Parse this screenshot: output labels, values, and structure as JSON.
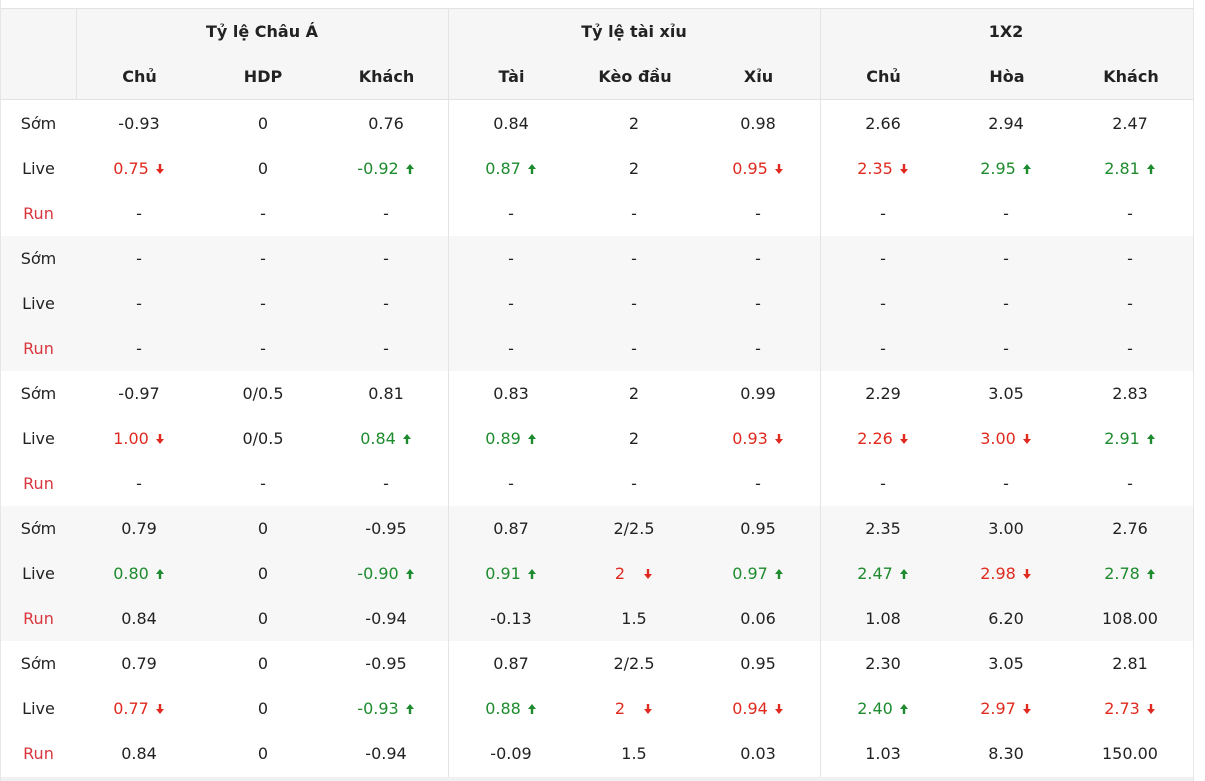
{
  "groups": [
    {
      "label": "Tỷ lệ Châu Á",
      "cols": [
        "Chủ",
        "HDP",
        "Khách"
      ]
    },
    {
      "label": "Tỷ lệ tài xỉu",
      "cols": [
        "Tài",
        "Kèo đầu",
        "Xỉu"
      ]
    },
    {
      "label": "1X2",
      "cols": [
        "Chủ",
        "Hòa",
        "Khách"
      ]
    }
  ],
  "blocks": [
    {
      "rows": [
        {
          "label": "Sớm",
          "type": "early",
          "cells": [
            {
              "v": "-0.93"
            },
            {
              "v": "0"
            },
            {
              "v": "0.76"
            },
            {
              "v": "0.84"
            },
            {
              "v": "2"
            },
            {
              "v": "0.98"
            },
            {
              "v": "2.66"
            },
            {
              "v": "2.94"
            },
            {
              "v": "2.47"
            }
          ]
        },
        {
          "label": "Live",
          "type": "live",
          "cells": [
            {
              "v": "0.75",
              "d": "down"
            },
            {
              "v": "0"
            },
            {
              "v": "-0.92",
              "d": "up"
            },
            {
              "v": "0.87",
              "d": "up"
            },
            {
              "v": "2"
            },
            {
              "v": "0.95",
              "d": "down"
            },
            {
              "v": "2.35",
              "d": "down"
            },
            {
              "v": "2.95",
              "d": "up"
            },
            {
              "v": "2.81",
              "d": "up"
            }
          ]
        },
        {
          "label": "Run",
          "type": "run",
          "cells": [
            {
              "v": "-"
            },
            {
              "v": "-"
            },
            {
              "v": "-"
            },
            {
              "v": "-"
            },
            {
              "v": "-"
            },
            {
              "v": "-"
            },
            {
              "v": "-"
            },
            {
              "v": "-"
            },
            {
              "v": "-"
            }
          ]
        }
      ]
    },
    {
      "rows": [
        {
          "label": "Sớm",
          "type": "early",
          "cells": [
            {
              "v": "-"
            },
            {
              "v": "-"
            },
            {
              "v": "-"
            },
            {
              "v": "-"
            },
            {
              "v": "-"
            },
            {
              "v": "-"
            },
            {
              "v": "-"
            },
            {
              "v": "-"
            },
            {
              "v": "-"
            }
          ]
        },
        {
          "label": "Live",
          "type": "live",
          "cells": [
            {
              "v": "-"
            },
            {
              "v": "-"
            },
            {
              "v": "-"
            },
            {
              "v": "-"
            },
            {
              "v": "-"
            },
            {
              "v": "-"
            },
            {
              "v": "-"
            },
            {
              "v": "-"
            },
            {
              "v": "-"
            }
          ]
        },
        {
          "label": "Run",
          "type": "run",
          "cells": [
            {
              "v": "-"
            },
            {
              "v": "-"
            },
            {
              "v": "-"
            },
            {
              "v": "-"
            },
            {
              "v": "-"
            },
            {
              "v": "-"
            },
            {
              "v": "-"
            },
            {
              "v": "-"
            },
            {
              "v": "-"
            }
          ]
        }
      ]
    },
    {
      "rows": [
        {
          "label": "Sớm",
          "type": "early",
          "cells": [
            {
              "v": "-0.97"
            },
            {
              "v": "0/0.5"
            },
            {
              "v": "0.81"
            },
            {
              "v": "0.83"
            },
            {
              "v": "2"
            },
            {
              "v": "0.99"
            },
            {
              "v": "2.29"
            },
            {
              "v": "3.05"
            },
            {
              "v": "2.83"
            }
          ]
        },
        {
          "label": "Live",
          "type": "live",
          "cells": [
            {
              "v": "1.00",
              "d": "down"
            },
            {
              "v": "0/0.5"
            },
            {
              "v": "0.84",
              "d": "up"
            },
            {
              "v": "0.89",
              "d": "up"
            },
            {
              "v": "2"
            },
            {
              "v": "0.93",
              "d": "down"
            },
            {
              "v": "2.26",
              "d": "down"
            },
            {
              "v": "3.00",
              "d": "down"
            },
            {
              "v": "2.91",
              "d": "up"
            }
          ]
        },
        {
          "label": "Run",
          "type": "run",
          "cells": [
            {
              "v": "-"
            },
            {
              "v": "-"
            },
            {
              "v": "-"
            },
            {
              "v": "-"
            },
            {
              "v": "-"
            },
            {
              "v": "-"
            },
            {
              "v": "-"
            },
            {
              "v": "-"
            },
            {
              "v": "-"
            }
          ]
        }
      ]
    },
    {
      "rows": [
        {
          "label": "Sớm",
          "type": "early",
          "cells": [
            {
              "v": "0.79"
            },
            {
              "v": "0"
            },
            {
              "v": "-0.95"
            },
            {
              "v": "0.87"
            },
            {
              "v": "2/2.5"
            },
            {
              "v": "0.95"
            },
            {
              "v": "2.35"
            },
            {
              "v": "3.00"
            },
            {
              "v": "2.76"
            }
          ]
        },
        {
          "label": "Live",
          "type": "live",
          "cells": [
            {
              "v": "0.80",
              "d": "up"
            },
            {
              "v": "0"
            },
            {
              "v": "-0.90",
              "d": "up"
            },
            {
              "v": "0.91",
              "d": "up"
            },
            {
              "v": "2",
              "d": "down"
            },
            {
              "v": "0.97",
              "d": "up"
            },
            {
              "v": "2.47",
              "d": "up"
            },
            {
              "v": "2.98",
              "d": "down"
            },
            {
              "v": "2.78",
              "d": "up"
            }
          ]
        },
        {
          "label": "Run",
          "type": "run",
          "cells": [
            {
              "v": "0.84"
            },
            {
              "v": "0"
            },
            {
              "v": "-0.94"
            },
            {
              "v": "-0.13"
            },
            {
              "v": "1.5"
            },
            {
              "v": "0.06"
            },
            {
              "v": "1.08"
            },
            {
              "v": "6.20"
            },
            {
              "v": "108.00"
            }
          ]
        }
      ]
    },
    {
      "rows": [
        {
          "label": "Sớm",
          "type": "early",
          "cells": [
            {
              "v": "0.79"
            },
            {
              "v": "0"
            },
            {
              "v": "-0.95"
            },
            {
              "v": "0.87"
            },
            {
              "v": "2/2.5"
            },
            {
              "v": "0.95"
            },
            {
              "v": "2.30"
            },
            {
              "v": "3.05"
            },
            {
              "v": "2.81"
            }
          ]
        },
        {
          "label": "Live",
          "type": "live",
          "cells": [
            {
              "v": "0.77",
              "d": "down"
            },
            {
              "v": "0"
            },
            {
              "v": "-0.93",
              "d": "up"
            },
            {
              "v": "0.88",
              "d": "up"
            },
            {
              "v": "2",
              "d": "down"
            },
            {
              "v": "0.94",
              "d": "down"
            },
            {
              "v": "2.40",
              "d": "up"
            },
            {
              "v": "2.97",
              "d": "down"
            },
            {
              "v": "2.73",
              "d": "down"
            }
          ]
        },
        {
          "label": "Run",
          "type": "run",
          "cells": [
            {
              "v": "0.84"
            },
            {
              "v": "0"
            },
            {
              "v": "-0.94"
            },
            {
              "v": "-0.09"
            },
            {
              "v": "1.5"
            },
            {
              "v": "0.03"
            },
            {
              "v": "1.03"
            },
            {
              "v": "8.30"
            },
            {
              "v": "150.00"
            }
          ]
        }
      ]
    }
  ],
  "colors": {
    "up": "#1e8b2e",
    "down": "#e02a1f",
    "run_label": "#d9363e"
  },
  "icons": {
    "up": "arrow-up-icon",
    "down": "arrow-down-icon"
  }
}
